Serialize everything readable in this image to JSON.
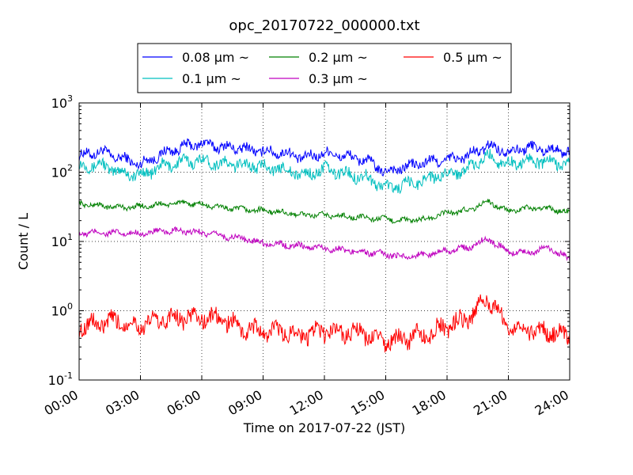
{
  "chart_data": {
    "type": "line",
    "title": "opc_20170722_000000.txt",
    "xlabel": "Time on 2017-07-22 (JST)",
    "ylabel": "Count / L",
    "y_scale": "log",
    "ylim": [
      0.1,
      1000
    ],
    "y_ticks": [
      {
        "value": 0.1,
        "base": "10",
        "exp": "-1"
      },
      {
        "value": 1,
        "base": "10",
        "exp": "0"
      },
      {
        "value": 10,
        "base": "10",
        "exp": "1"
      },
      {
        "value": 100,
        "base": "10",
        "exp": "2"
      },
      {
        "value": 1000,
        "base": "10",
        "exp": "3"
      }
    ],
    "xlim": [
      "00:00",
      "24:00"
    ],
    "x_ticks": [
      "00:00",
      "03:00",
      "06:00",
      "09:00",
      "12:00",
      "15:00",
      "18:00",
      "21:00",
      "24:00"
    ],
    "grid": true,
    "legend": {
      "placement": "top-center, above plot",
      "columns": 3
    },
    "series": [
      {
        "name": "0.08 μm ~",
        "color": "#0000ff",
        "x": [
          "00:00",
          "01:00",
          "02:00",
          "03:00",
          "04:00",
          "05:00",
          "06:00",
          "07:00",
          "08:00",
          "09:00",
          "10:00",
          "11:00",
          "12:00",
          "13:00",
          "14:00",
          "15:00",
          "16:00",
          "17:00",
          "18:00",
          "19:00",
          "20:00",
          "21:00",
          "22:00",
          "23:00",
          "24:00"
        ],
        "values": [
          170,
          200,
          160,
          130,
          180,
          230,
          260,
          230,
          220,
          200,
          190,
          160,
          190,
          170,
          150,
          100,
          120,
          140,
          150,
          170,
          240,
          200,
          230,
          210,
          200
        ]
      },
      {
        "name": "0.1 μm ~",
        "color": "#00bfbf",
        "x": [
          "00:00",
          "01:00",
          "02:00",
          "03:00",
          "04:00",
          "05:00",
          "06:00",
          "07:00",
          "08:00",
          "09:00",
          "10:00",
          "11:00",
          "12:00",
          "13:00",
          "14:00",
          "15:00",
          "16:00",
          "17:00",
          "18:00",
          "19:00",
          "20:00",
          "21:00",
          "22:00",
          "23:00",
          "24:00"
        ],
        "values": [
          120,
          130,
          100,
          90,
          120,
          140,
          150,
          130,
          130,
          120,
          110,
          90,
          110,
          95,
          85,
          60,
          65,
          80,
          95,
          110,
          170,
          130,
          150,
          140,
          130
        ]
      },
      {
        "name": "0.2 μm ~",
        "color": "#008000",
        "x": [
          "00:00",
          "01:00",
          "02:00",
          "03:00",
          "04:00",
          "05:00",
          "06:00",
          "07:00",
          "08:00",
          "09:00",
          "10:00",
          "11:00",
          "12:00",
          "13:00",
          "14:00",
          "15:00",
          "16:00",
          "17:00",
          "18:00",
          "19:00",
          "20:00",
          "21:00",
          "22:00",
          "23:00",
          "24:00"
        ],
        "values": [
          35,
          33,
          31,
          32,
          34,
          36,
          34,
          31,
          29,
          28,
          26,
          24,
          24,
          23,
          22,
          21,
          20,
          21,
          26,
          28,
          38,
          27,
          30,
          30,
          26
        ]
      },
      {
        "name": "0.3 μm ~",
        "color": "#bf00bf",
        "x": [
          "00:00",
          "01:00",
          "02:00",
          "03:00",
          "04:00",
          "05:00",
          "06:00",
          "07:00",
          "08:00",
          "09:00",
          "10:00",
          "11:00",
          "12:00",
          "13:00",
          "14:00",
          "15:00",
          "16:00",
          "17:00",
          "18:00",
          "19:00",
          "20:00",
          "21:00",
          "22:00",
          "23:00",
          "24:00"
        ],
        "values": [
          13,
          13.5,
          13,
          13,
          14,
          14,
          13.5,
          12,
          11,
          9.5,
          9,
          8.5,
          8,
          7.5,
          7,
          6.5,
          6,
          6.5,
          7.5,
          8,
          11,
          7,
          7,
          8,
          5.5
        ]
      },
      {
        "name": "0.5 μm ~",
        "color": "#ff0000",
        "x": [
          "00:00",
          "01:00",
          "02:00",
          "03:00",
          "04:00",
          "05:00",
          "06:00",
          "07:00",
          "08:00",
          "09:00",
          "10:00",
          "11:00",
          "12:00",
          "13:00",
          "14:00",
          "15:00",
          "16:00",
          "17:00",
          "18:00",
          "19:00",
          "20:00",
          "21:00",
          "22:00",
          "23:00",
          "24:00"
        ],
        "values": [
          0.6,
          0.65,
          0.7,
          0.6,
          0.75,
          0.8,
          0.8,
          0.75,
          0.55,
          0.5,
          0.5,
          0.45,
          0.5,
          0.5,
          0.45,
          0.35,
          0.4,
          0.45,
          0.6,
          0.75,
          1.5,
          0.6,
          0.55,
          0.5,
          0.45
        ]
      }
    ]
  }
}
